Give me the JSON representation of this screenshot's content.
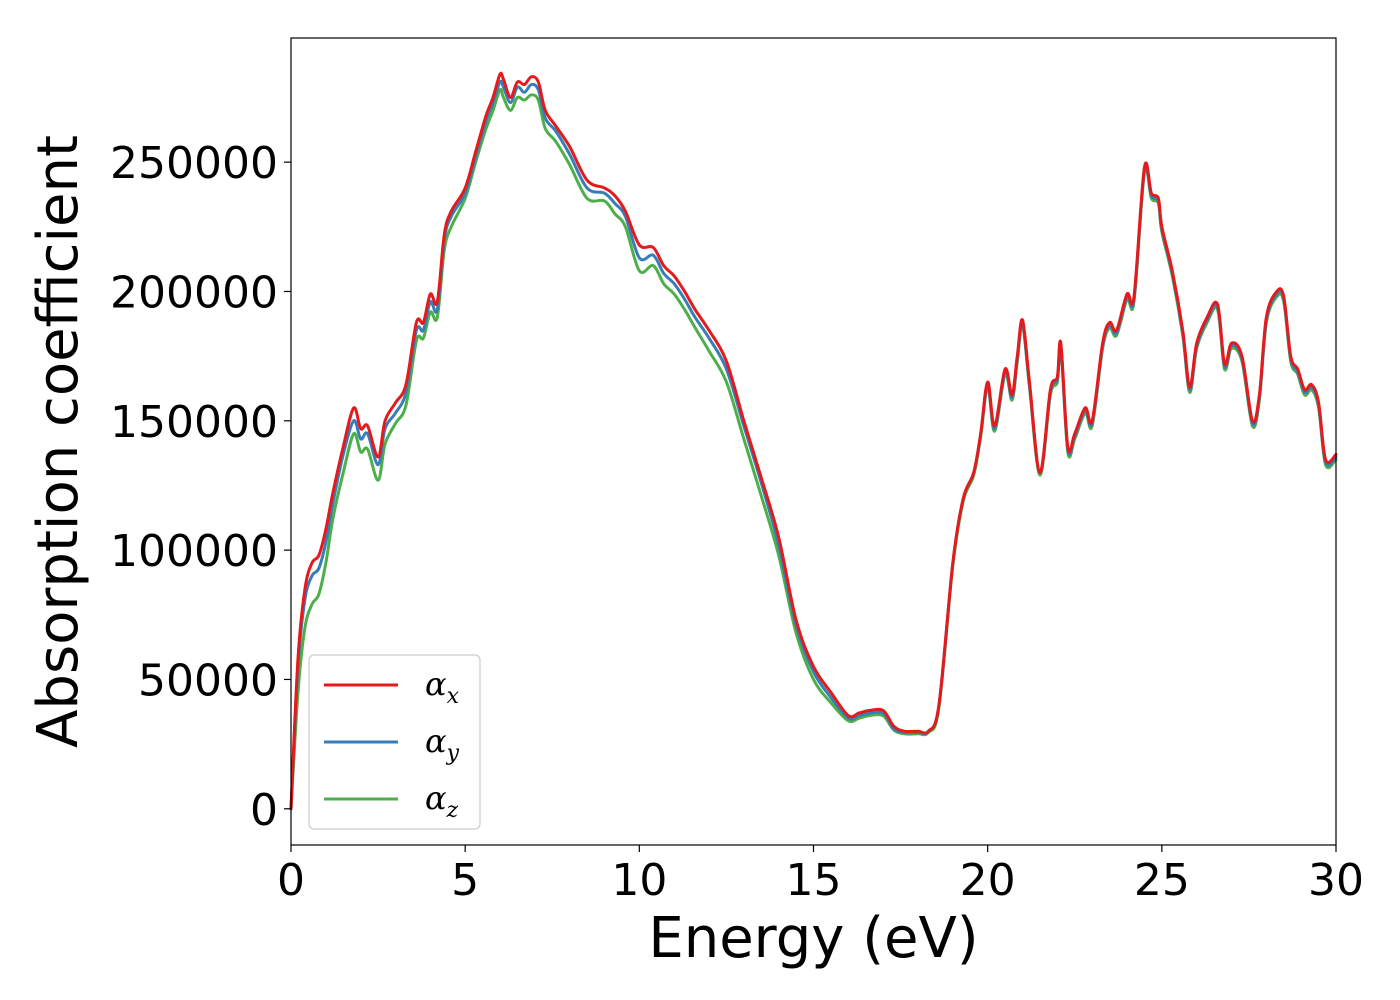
{
  "chart_data": {
    "type": "line",
    "title": "",
    "xlabel": "Energy (eV)",
    "ylabel": "Absorption coefficient",
    "xlim": [
      0,
      30
    ],
    "ylim": [
      -14000,
      298000
    ],
    "xticks": [
      0,
      5,
      10,
      15,
      20,
      25,
      30
    ],
    "yticks": [
      0,
      50000,
      100000,
      150000,
      200000,
      250000
    ],
    "grid": false,
    "legend_position": "lower-left",
    "series": [
      {
        "name": "αx",
        "legend_symbol": "α",
        "legend_subscript": "x",
        "color": "#e41a1c",
        "x": [
          0,
          0.2,
          0.4,
          0.6,
          0.8,
          1.0,
          1.2,
          1.5,
          1.8,
          2.0,
          2.2,
          2.5,
          2.7,
          3.0,
          3.3,
          3.6,
          3.8,
          4.0,
          4.2,
          4.4,
          4.6,
          5.0,
          5.3,
          5.6,
          5.8,
          6.0,
          6.1,
          6.3,
          6.5,
          6.7,
          6.9,
          7.1,
          7.3,
          7.6,
          8.0,
          8.5,
          9.0,
          9.3,
          9.6,
          10.0,
          10.4,
          10.7,
          11.0,
          11.3,
          11.6,
          12.0,
          12.5,
          13.0,
          13.5,
          14.0,
          14.5,
          15.0,
          15.5,
          16.0,
          16.3,
          16.6,
          17.0,
          17.3,
          17.6,
          18.0,
          18.3,
          18.6,
          19.0,
          19.3,
          19.6,
          19.8,
          20.0,
          20.2,
          20.5,
          20.7,
          20.85,
          21.0,
          21.2,
          21.5,
          21.8,
          22.0,
          22.1,
          22.3,
          22.5,
          22.8,
          23.0,
          23.3,
          23.5,
          23.7,
          24.0,
          24.2,
          24.5,
          24.7,
          24.9,
          25.0,
          25.3,
          25.6,
          25.8,
          26.0,
          26.3,
          26.6,
          26.8,
          27.0,
          27.3,
          27.6,
          27.8,
          28.0,
          28.3,
          28.5,
          28.7,
          28.9,
          29.1,
          29.3,
          29.5,
          29.7,
          30.0
        ],
        "values": [
          0,
          58000,
          85000,
          95000,
          98000,
          108000,
          122000,
          140000,
          155000,
          147000,
          148000,
          136000,
          150000,
          157000,
          164000,
          188000,
          188000,
          199000,
          196000,
          222000,
          231000,
          240000,
          254000,
          268000,
          275000,
          284000,
          282000,
          275000,
          281000,
          280000,
          283000,
          281000,
          270000,
          264000,
          256000,
          243000,
          240000,
          237000,
          231000,
          218000,
          217000,
          210000,
          206000,
          200000,
          193000,
          185000,
          173000,
          150000,
          128000,
          105000,
          73000,
          55000,
          45000,
          36000,
          37000,
          38000,
          38000,
          32000,
          30000,
          30000,
          30000,
          40000,
          95000,
          120000,
          130000,
          145000,
          165000,
          148000,
          170000,
          160000,
          175000,
          189000,
          165000,
          130000,
          162000,
          167000,
          180000,
          140000,
          145000,
          155000,
          150000,
          180000,
          188000,
          185000,
          199000,
          198000,
          248000,
          238000,
          236000,
          225000,
          208000,
          185000,
          163000,
          180000,
          190000,
          195000,
          172000,
          180000,
          175000,
          150000,
          160000,
          190000,
          200000,
          198000,
          175000,
          170000,
          162000,
          164000,
          157000,
          135000,
          137000
        ]
      },
      {
        "name": "αy",
        "legend_symbol": "α",
        "legend_subscript": "y",
        "color": "#377eb8",
        "x": [
          0,
          0.2,
          0.4,
          0.6,
          0.8,
          1.0,
          1.2,
          1.5,
          1.8,
          2.0,
          2.2,
          2.5,
          2.7,
          3.0,
          3.3,
          3.6,
          3.8,
          4.0,
          4.2,
          4.4,
          4.6,
          5.0,
          5.3,
          5.6,
          5.8,
          6.0,
          6.1,
          6.3,
          6.5,
          6.7,
          6.9,
          7.1,
          7.3,
          7.6,
          8.0,
          8.5,
          9.0,
          9.3,
          9.6,
          10.0,
          10.4,
          10.7,
          11.0,
          11.3,
          11.6,
          12.0,
          12.5,
          13.0,
          13.5,
          14.0,
          14.5,
          15.0,
          15.5,
          16.0,
          16.3,
          16.6,
          17.0,
          17.3,
          17.6,
          18.0,
          18.3,
          18.6,
          19.0,
          19.3,
          19.6,
          19.8,
          20.0,
          20.2,
          20.5,
          20.7,
          20.85,
          21.0,
          21.2,
          21.5,
          21.8,
          22.0,
          22.1,
          22.3,
          22.5,
          22.8,
          23.0,
          23.3,
          23.5,
          23.7,
          24.0,
          24.2,
          24.5,
          24.7,
          24.9,
          25.0,
          25.3,
          25.6,
          25.8,
          26.0,
          26.3,
          26.6,
          26.8,
          27.0,
          27.3,
          27.6,
          27.8,
          28.0,
          28.3,
          28.5,
          28.7,
          28.9,
          29.1,
          29.3,
          29.5,
          29.7,
          30.0
        ],
        "values": [
          0,
          55000,
          81000,
          90000,
          93000,
          103000,
          118000,
          137000,
          150000,
          143000,
          145000,
          133000,
          147000,
          153000,
          161000,
          185000,
          185000,
          196000,
          193000,
          220000,
          229000,
          238000,
          252000,
          266000,
          273000,
          281000,
          279000,
          273000,
          279000,
          277000,
          280000,
          278000,
          267000,
          262000,
          253000,
          240000,
          238000,
          234000,
          229000,
          213000,
          214000,
          207000,
          203000,
          197000,
          190000,
          182000,
          170000,
          148000,
          126000,
          102000,
          71000,
          53000,
          43000,
          35000,
          36000,
          37000,
          37000,
          31000,
          29500,
          29500,
          30000,
          40000,
          95000,
          120000,
          130000,
          145000,
          164000,
          147000,
          169000,
          159000,
          174000,
          188000,
          164000,
          130000,
          161000,
          166000,
          179000,
          139000,
          144000,
          154000,
          149000,
          179000,
          187000,
          184000,
          198000,
          197000,
          247000,
          237000,
          235000,
          224000,
          207000,
          184000,
          162000,
          179000,
          189000,
          194000,
          171000,
          179000,
          174000,
          149000,
          159000,
          189000,
          199000,
          197000,
          174000,
          169000,
          161000,
          163000,
          156000,
          134000,
          136000
        ]
      },
      {
        "name": "αz",
        "legend_symbol": "α",
        "legend_subscript": "z",
        "color": "#4daf4a",
        "x": [
          0,
          0.2,
          0.4,
          0.6,
          0.8,
          1.0,
          1.2,
          1.5,
          1.8,
          2.0,
          2.2,
          2.5,
          2.7,
          3.0,
          3.3,
          3.6,
          3.8,
          4.0,
          4.2,
          4.4,
          4.6,
          5.0,
          5.3,
          5.6,
          5.8,
          6.0,
          6.1,
          6.3,
          6.5,
          6.7,
          6.9,
          7.1,
          7.3,
          7.6,
          8.0,
          8.5,
          9.0,
          9.3,
          9.6,
          10.0,
          10.4,
          10.7,
          11.0,
          11.3,
          11.6,
          12.0,
          12.5,
          13.0,
          13.5,
          14.0,
          14.5,
          15.0,
          15.5,
          16.0,
          16.3,
          16.6,
          17.0,
          17.3,
          17.6,
          18.0,
          18.3,
          18.6,
          19.0,
          19.3,
          19.6,
          19.8,
          20.0,
          20.2,
          20.5,
          20.7,
          20.85,
          21.0,
          21.2,
          21.5,
          21.8,
          22.0,
          22.1,
          22.3,
          22.5,
          22.8,
          23.0,
          23.3,
          23.5,
          23.7,
          24.0,
          24.2,
          24.5,
          24.7,
          24.9,
          25.0,
          25.3,
          25.6,
          25.8,
          26.0,
          26.3,
          26.6,
          26.8,
          27.0,
          27.3,
          27.6,
          27.8,
          28.0,
          28.3,
          28.5,
          28.7,
          28.9,
          29.1,
          29.3,
          29.5,
          29.7,
          30.0
        ],
        "values": [
          0,
          45000,
          70000,
          79000,
          83000,
          95000,
          112000,
          130000,
          145000,
          138000,
          139000,
          127000,
          141000,
          149000,
          156000,
          181000,
          182000,
          192000,
          190000,
          216000,
          225000,
          236000,
          250000,
          263000,
          270000,
          278000,
          275000,
          270000,
          275000,
          274000,
          276000,
          274000,
          263000,
          258000,
          249000,
          236000,
          235000,
          230000,
          225000,
          208000,
          210000,
          203000,
          199000,
          193000,
          186000,
          177000,
          165000,
          143000,
          121000,
          98000,
          68000,
          50000,
          41000,
          34000,
          35000,
          36000,
          36000,
          30500,
          29000,
          29000,
          29500,
          39000,
          94000,
          119000,
          129000,
          144000,
          163000,
          146000,
          168000,
          158000,
          173000,
          187000,
          163000,
          129000,
          160000,
          165000,
          178000,
          138000,
          143000,
          153000,
          148000,
          178000,
          186000,
          183000,
          197000,
          196000,
          246000,
          236000,
          234000,
          223000,
          206000,
          183000,
          161000,
          178000,
          188000,
          193000,
          170000,
          178000,
          173000,
          148000,
          158000,
          188000,
          198000,
          196000,
          173000,
          168000,
          160000,
          162000,
          155000,
          133000,
          135000
        ]
      }
    ]
  }
}
